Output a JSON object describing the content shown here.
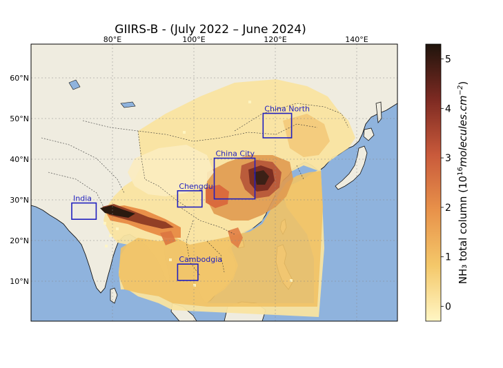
{
  "title": "GIIRS-B - (July 2022 – June 2024)",
  "map": {
    "lon_ticks": [
      "80°E",
      "100°E",
      "120°E",
      "140°E"
    ],
    "lat_ticks": [
      "60°N",
      "50°N",
      "40°N",
      "30°N",
      "20°N",
      "10°N"
    ],
    "extent": {
      "lon": [
        66,
        156
      ],
      "lat": [
        0,
        68
      ]
    },
    "colors": {
      "ocean": "#8fb3dd",
      "land": "#efece0",
      "box": "#1f1fbf"
    }
  },
  "regions": [
    {
      "name": "China North",
      "lon": [
        123,
        130
      ],
      "lat": [
        45,
        51
      ]
    },
    {
      "name": "China City",
      "lon": [
        111,
        121
      ],
      "lat": [
        30,
        40
      ]
    },
    {
      "name": "Chengdu",
      "lon": [
        102,
        108
      ],
      "lat": [
        28,
        32
      ]
    },
    {
      "name": "India",
      "lon": [
        76,
        82
      ],
      "lat": [
        25,
        29
      ]
    },
    {
      "name": "Cambodgia",
      "lon": [
        102,
        107
      ],
      "lat": [
        10,
        14
      ]
    }
  ],
  "colorbar": {
    "label": "NH₃ total column (10",
    "label_sup": "16",
    "label_units": "molecules.cm",
    "label_sup2": "−2",
    "label_close": ")",
    "ticks": [
      "0",
      "1",
      "2",
      "3",
      "4",
      "5"
    ],
    "range": [
      -0.3,
      5.3
    ],
    "colors": [
      "#fff6c4",
      "#f4c86a",
      "#e8924a",
      "#c95a3b",
      "#7d2a22",
      "#1f140c"
    ]
  }
}
